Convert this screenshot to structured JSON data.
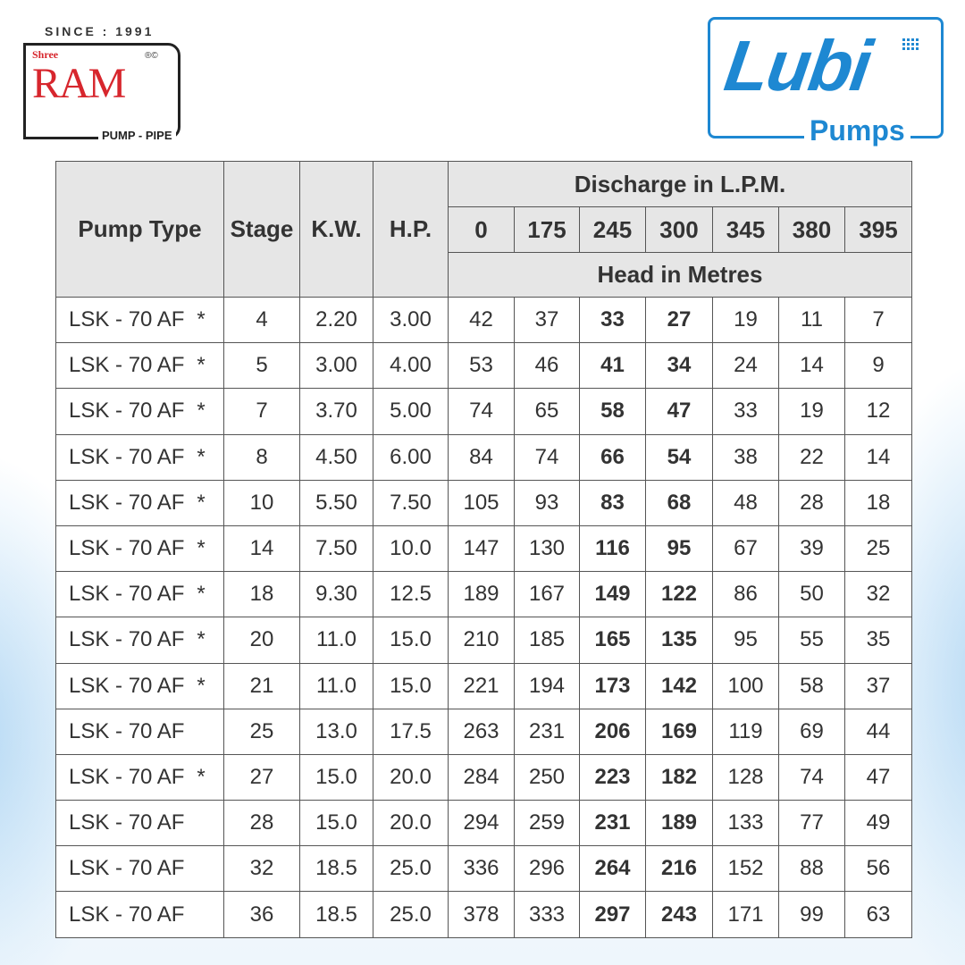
{
  "logos": {
    "left": {
      "since": "SINCE : 1991",
      "prefix": "Shree",
      "name": "RAM",
      "marks": "®©",
      "tagline": "PUMP - PIPE",
      "color": "#d7262d"
    },
    "right": {
      "name": "Lubi",
      "tagline": "Pumps",
      "color": "#1e88d2"
    }
  },
  "table": {
    "headers": {
      "pump_type": "Pump Type",
      "stage": "Stage",
      "kw": "K.W.",
      "hp": "H.P.",
      "discharge": "Discharge in L.P.M.",
      "head": "Head in Metres"
    },
    "discharge_values": [
      "0",
      "175",
      "245",
      "300",
      "345",
      "380",
      "395"
    ],
    "bold_columns": [
      "245",
      "300"
    ],
    "rows": [
      {
        "pump_type": "LSK - 70 AF",
        "mark": "*",
        "stage": "4",
        "kw": "2.20",
        "hp": "3.00",
        "head": [
          "42",
          "37",
          "33",
          "27",
          "19",
          "11",
          "7"
        ]
      },
      {
        "pump_type": "LSK - 70 AF",
        "mark": "*",
        "stage": "5",
        "kw": "3.00",
        "hp": "4.00",
        "head": [
          "53",
          "46",
          "41",
          "34",
          "24",
          "14",
          "9"
        ]
      },
      {
        "pump_type": "LSK - 70 AF",
        "mark": "*",
        "stage": "7",
        "kw": "3.70",
        "hp": "5.00",
        "head": [
          "74",
          "65",
          "58",
          "47",
          "33",
          "19",
          "12"
        ]
      },
      {
        "pump_type": "LSK - 70 AF",
        "mark": "*",
        "stage": "8",
        "kw": "4.50",
        "hp": "6.00",
        "head": [
          "84",
          "74",
          "66",
          "54",
          "38",
          "22",
          "14"
        ]
      },
      {
        "pump_type": "LSK - 70 AF",
        "mark": "*",
        "stage": "10",
        "kw": "5.50",
        "hp": "7.50",
        "head": [
          "105",
          "93",
          "83",
          "68",
          "48",
          "28",
          "18"
        ]
      },
      {
        "pump_type": "LSK - 70 AF",
        "mark": "*",
        "stage": "14",
        "kw": "7.50",
        "hp": "10.0",
        "head": [
          "147",
          "130",
          "116",
          "95",
          "67",
          "39",
          "25"
        ]
      },
      {
        "pump_type": "LSK - 70 AF",
        "mark": "*",
        "stage": "18",
        "kw": "9.30",
        "hp": "12.5",
        "head": [
          "189",
          "167",
          "149",
          "122",
          "86",
          "50",
          "32"
        ]
      },
      {
        "pump_type": "LSK - 70 AF",
        "mark": "*",
        "stage": "20",
        "kw": "11.0",
        "hp": "15.0",
        "head": [
          "210",
          "185",
          "165",
          "135",
          "95",
          "55",
          "35"
        ]
      },
      {
        "pump_type": "LSK - 70 AF",
        "mark": "*",
        "stage": "21",
        "kw": "11.0",
        "hp": "15.0",
        "head": [
          "221",
          "194",
          "173",
          "142",
          "100",
          "58",
          "37"
        ]
      },
      {
        "pump_type": "LSK - 70 AF",
        "mark": "",
        "stage": "25",
        "kw": "13.0",
        "hp": "17.5",
        "head": [
          "263",
          "231",
          "206",
          "169",
          "119",
          "69",
          "44"
        ]
      },
      {
        "pump_type": "LSK - 70 AF",
        "mark": "*",
        "stage": "27",
        "kw": "15.0",
        "hp": "20.0",
        "head": [
          "284",
          "250",
          "223",
          "182",
          "128",
          "74",
          "47"
        ]
      },
      {
        "pump_type": "LSK - 70 AF",
        "mark": "",
        "stage": "28",
        "kw": "15.0",
        "hp": "20.0",
        "head": [
          "294",
          "259",
          "231",
          "189",
          "133",
          "77",
          "49"
        ]
      },
      {
        "pump_type": "LSK - 70 AF",
        "mark": "",
        "stage": "32",
        "kw": "18.5",
        "hp": "25.0",
        "head": [
          "336",
          "296",
          "264",
          "216",
          "152",
          "88",
          "56"
        ]
      },
      {
        "pump_type": "LSK - 70 AF",
        "mark": "",
        "stage": "36",
        "kw": "18.5",
        "hp": "25.0",
        "head": [
          "378",
          "333",
          "297",
          "243",
          "171",
          "99",
          "63"
        ]
      }
    ]
  }
}
